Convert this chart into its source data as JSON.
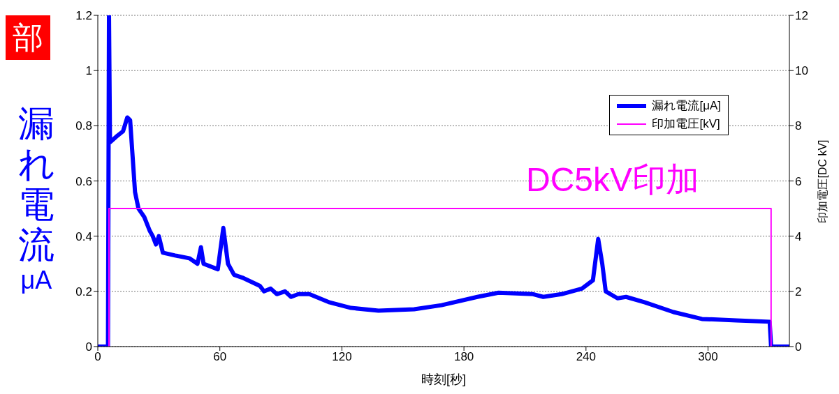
{
  "chart_data": {
    "type": "line",
    "xlabel": "時刻[秒]",
    "ylabel": "漏れ電流 μA",
    "y2label": "印加電圧[DC kV]",
    "xlim": [
      0,
      340
    ],
    "xticks": [
      0,
      60,
      120,
      180,
      240,
      300
    ],
    "ylim": [
      0,
      1.2
    ],
    "yticks": [
      0,
      0.2,
      0.4,
      0.6,
      0.8,
      1,
      1.2
    ],
    "y2lim": [
      0,
      12
    ],
    "y2ticks": [
      0,
      2,
      4,
      6,
      8,
      10,
      12
    ],
    "grid": "y",
    "legend": "top right",
    "annotations": [
      "部",
      "DC5kV印加"
    ],
    "series": [
      {
        "name": "漏れ電流[μA]",
        "color": "#0000ff",
        "x": [
          0,
          5,
          5.5,
          6,
          9,
          12.4,
          14.5,
          15.9,
          18.3,
          20,
          22.8,
          25.5,
          27,
          28.6,
          30,
          32,
          38,
          45,
          49,
          50.7,
          52,
          59,
          61.7,
          64,
          67,
          71,
          79.7,
          81.7,
          85,
          88,
          92,
          95,
          98.6,
          104,
          114,
          124.5,
          138,
          155.5,
          169,
          186.6,
          197,
          214,
          219,
          228,
          238,
          243.4,
          246,
          248,
          249.7,
          255.5,
          259.7,
          269,
          283,
          297,
          314,
          330.3,
          331,
          340
        ],
        "values": [
          0,
          0,
          1.2,
          0.74,
          0.76,
          0.78,
          0.83,
          0.82,
          0.56,
          0.5,
          0.47,
          0.42,
          0.4,
          0.37,
          0.4,
          0.34,
          0.33,
          0.32,
          0.3,
          0.36,
          0.3,
          0.28,
          0.43,
          0.3,
          0.26,
          0.25,
          0.22,
          0.2,
          0.21,
          0.19,
          0.2,
          0.18,
          0.19,
          0.19,
          0.16,
          0.14,
          0.13,
          0.135,
          0.15,
          0.18,
          0.195,
          0.19,
          0.18,
          0.19,
          0.21,
          0.24,
          0.39,
          0.3,
          0.2,
          0.175,
          0.18,
          0.16,
          0.125,
          0.1,
          0.095,
          0.09,
          0,
          0
        ]
      },
      {
        "name": "印加電圧[kV]",
        "color": "#ff00ff",
        "axis": "y2",
        "x": [
          5.5,
          5.5,
          331,
          331
        ],
        "values": [
          0,
          5,
          5,
          0
        ]
      }
    ]
  }
}
